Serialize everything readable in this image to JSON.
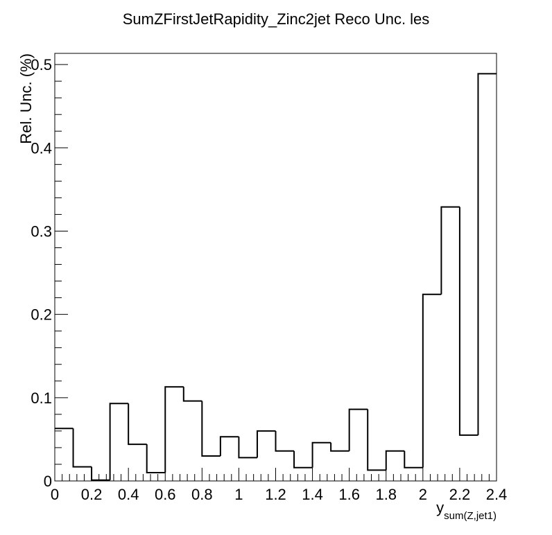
{
  "chart_data": {
    "type": "bar",
    "style": "step-histogram",
    "title": "SumZFirstJetRapidity_Zinc2jet Reco Unc. les",
    "xlabel": "y",
    "xlabel_subscript": "sum(Z,jet1)",
    "ylabel": "Rel. Unc. (%)",
    "xlim": [
      0,
      2.4
    ],
    "ylim": [
      0,
      0.5
    ],
    "grid": false,
    "x_ticks": [
      "0",
      "0.2",
      "0.4",
      "0.6",
      "0.8",
      "1",
      "1.2",
      "1.4",
      "1.6",
      "1.8",
      "2",
      "2.2",
      "2.4"
    ],
    "y_ticks": [
      "0",
      "0.1",
      "0.2",
      "0.3",
      "0.4",
      "0.5"
    ],
    "bin_edges": [
      0,
      0.1,
      0.2,
      0.3,
      0.4,
      0.5,
      0.6,
      0.7,
      0.8,
      0.9,
      1.0,
      1.1,
      1.2,
      1.3,
      1.4,
      1.5,
      1.6,
      1.7,
      1.8,
      1.9,
      2.0,
      2.1,
      2.2,
      2.3,
      2.4
    ],
    "values": [
      0.063,
      0.017,
      0.001,
      0.093,
      0.044,
      0.01,
      0.113,
      0.096,
      0.03,
      0.053,
      0.028,
      0.06,
      0.036,
      0.016,
      0.046,
      0.036,
      0.086,
      0.013,
      0.036,
      0.016,
      0.224,
      0.329,
      0.055,
      0.489
    ],
    "line_color": "#000000"
  }
}
